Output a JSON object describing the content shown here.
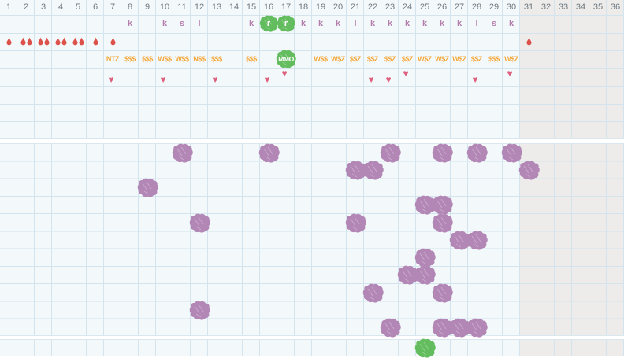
{
  "chart": {
    "columns": 36,
    "day_numbers": [
      "1",
      "2",
      "3",
      "4",
      "5",
      "6",
      "7",
      "8",
      "9",
      "10",
      "11",
      "12",
      "13",
      "14",
      "15",
      "16",
      "17",
      "18",
      "19",
      "20",
      "21",
      "22",
      "23",
      "24",
      "25",
      "26",
      "27",
      "28",
      "29",
      "30",
      "31",
      "32",
      "33",
      "34",
      "35",
      "36"
    ],
    "disabled_days": {
      "from": 31,
      "to": 36
    },
    "symbol_rows": {
      "letters": [
        {
          "day": 8,
          "char": "k"
        },
        {
          "day": 10,
          "char": "k"
        },
        {
          "day": 11,
          "char": "s"
        },
        {
          "day": 12,
          "char": "l"
        },
        {
          "day": 15,
          "char": "k"
        },
        {
          "day": 16,
          "char": "r",
          "highlight": true
        },
        {
          "day": 17,
          "char": "r",
          "highlight": true
        },
        {
          "day": 18,
          "char": "k"
        },
        {
          "day": 19,
          "char": "k"
        },
        {
          "day": 20,
          "char": "k"
        },
        {
          "day": 21,
          "char": "l"
        },
        {
          "day": 22,
          "char": "k"
        },
        {
          "day": 23,
          "char": "k"
        },
        {
          "day": 24,
          "char": "k"
        },
        {
          "day": 25,
          "char": "k"
        },
        {
          "day": 26,
          "char": "k"
        },
        {
          "day": 27,
          "char": "k"
        },
        {
          "day": 28,
          "char": "l"
        },
        {
          "day": 29,
          "char": "s"
        },
        {
          "day": 30,
          "char": "k"
        }
      ],
      "bleeding": [
        {
          "day": 1,
          "drops": 1
        },
        {
          "day": 2,
          "drops": 2
        },
        {
          "day": 3,
          "drops": 2
        },
        {
          "day": 4,
          "drops": 2
        },
        {
          "day": 5,
          "drops": 2
        },
        {
          "day": 6,
          "drops": 1
        },
        {
          "day": 7,
          "drops": 1
        },
        {
          "day": 31,
          "drops": 1
        }
      ],
      "codes": [
        {
          "day": 7,
          "text": "NTZ"
        },
        {
          "day": 8,
          "text": "$$$"
        },
        {
          "day": 9,
          "text": "$$$"
        },
        {
          "day": 10,
          "text": "W$$"
        },
        {
          "day": 11,
          "text": "W$$"
        },
        {
          "day": 12,
          "text": "N$$"
        },
        {
          "day": 13,
          "text": "$$$"
        },
        {
          "day": 15,
          "text": "$$$"
        },
        {
          "day": 17,
          "text": "MMO",
          "highlight": true
        },
        {
          "day": 19,
          "text": "W$$"
        },
        {
          "day": 20,
          "text": "W$Z"
        },
        {
          "day": 21,
          "text": "$$Z"
        },
        {
          "day": 22,
          "text": "$$Z"
        },
        {
          "day": 23,
          "text": "$$Z"
        },
        {
          "day": 24,
          "text": "$$Z"
        },
        {
          "day": 25,
          "text": "W$Z"
        },
        {
          "day": 26,
          "text": "W$Z"
        },
        {
          "day": 27,
          "text": "W$Z"
        },
        {
          "day": 28,
          "text": "$$Z"
        },
        {
          "day": 29,
          "text": "$$$"
        },
        {
          "day": 30,
          "text": "W$Z"
        }
      ],
      "hearts": [
        {
          "day": 7
        },
        {
          "day": 10
        },
        {
          "day": 13
        },
        {
          "day": 16
        },
        {
          "day": 17,
          "raised": true
        },
        {
          "day": 22
        },
        {
          "day": 23
        },
        {
          "day": 24,
          "raised": true
        },
        {
          "day": 28
        },
        {
          "day": 30,
          "raised": true
        }
      ]
    },
    "dot_section": {
      "rows": 11,
      "marks": [
        {
          "day": 11,
          "row": 1
        },
        {
          "day": 16,
          "row": 1
        },
        {
          "day": 23,
          "row": 1
        },
        {
          "day": 26,
          "row": 1
        },
        {
          "day": 28,
          "row": 1
        },
        {
          "day": 30,
          "row": 1
        },
        {
          "day": 21,
          "row": 2
        },
        {
          "day": 22,
          "row": 2
        },
        {
          "day": 31,
          "row": 2
        },
        {
          "day": 9,
          "row": 3
        },
        {
          "day": 25,
          "row": 4
        },
        {
          "day": 26,
          "row": 4
        },
        {
          "day": 12,
          "row": 5
        },
        {
          "day": 21,
          "row": 5
        },
        {
          "day": 26,
          "row": 5
        },
        {
          "day": 27,
          "row": 6
        },
        {
          "day": 28,
          "row": 6
        },
        {
          "day": 25,
          "row": 7
        },
        {
          "day": 24,
          "row": 8
        },
        {
          "day": 25,
          "row": 8
        },
        {
          "day": 22,
          "row": 9
        },
        {
          "day": 26,
          "row": 9
        },
        {
          "day": 12,
          "row": 10
        },
        {
          "day": 23,
          "row": 11
        },
        {
          "day": 26,
          "row": 11
        },
        {
          "day": 27,
          "row": 11
        },
        {
          "day": 28,
          "row": 11
        }
      ]
    },
    "footer_section": {
      "marks": [
        {
          "day": 25
        }
      ]
    },
    "colors": {
      "section_bg": "#f3f8fa",
      "grid_line": "#d3e4ee",
      "disabled_bg": "#edecea",
      "day_number_text": "#6e7980",
      "letter_text": "#b57fad",
      "code_text": "#f5a83b",
      "blood_drop": "#dc5149",
      "heart": "#dd5f7d",
      "purple_mark": "#b286b5",
      "green_mark": "#63bd5f"
    }
  }
}
